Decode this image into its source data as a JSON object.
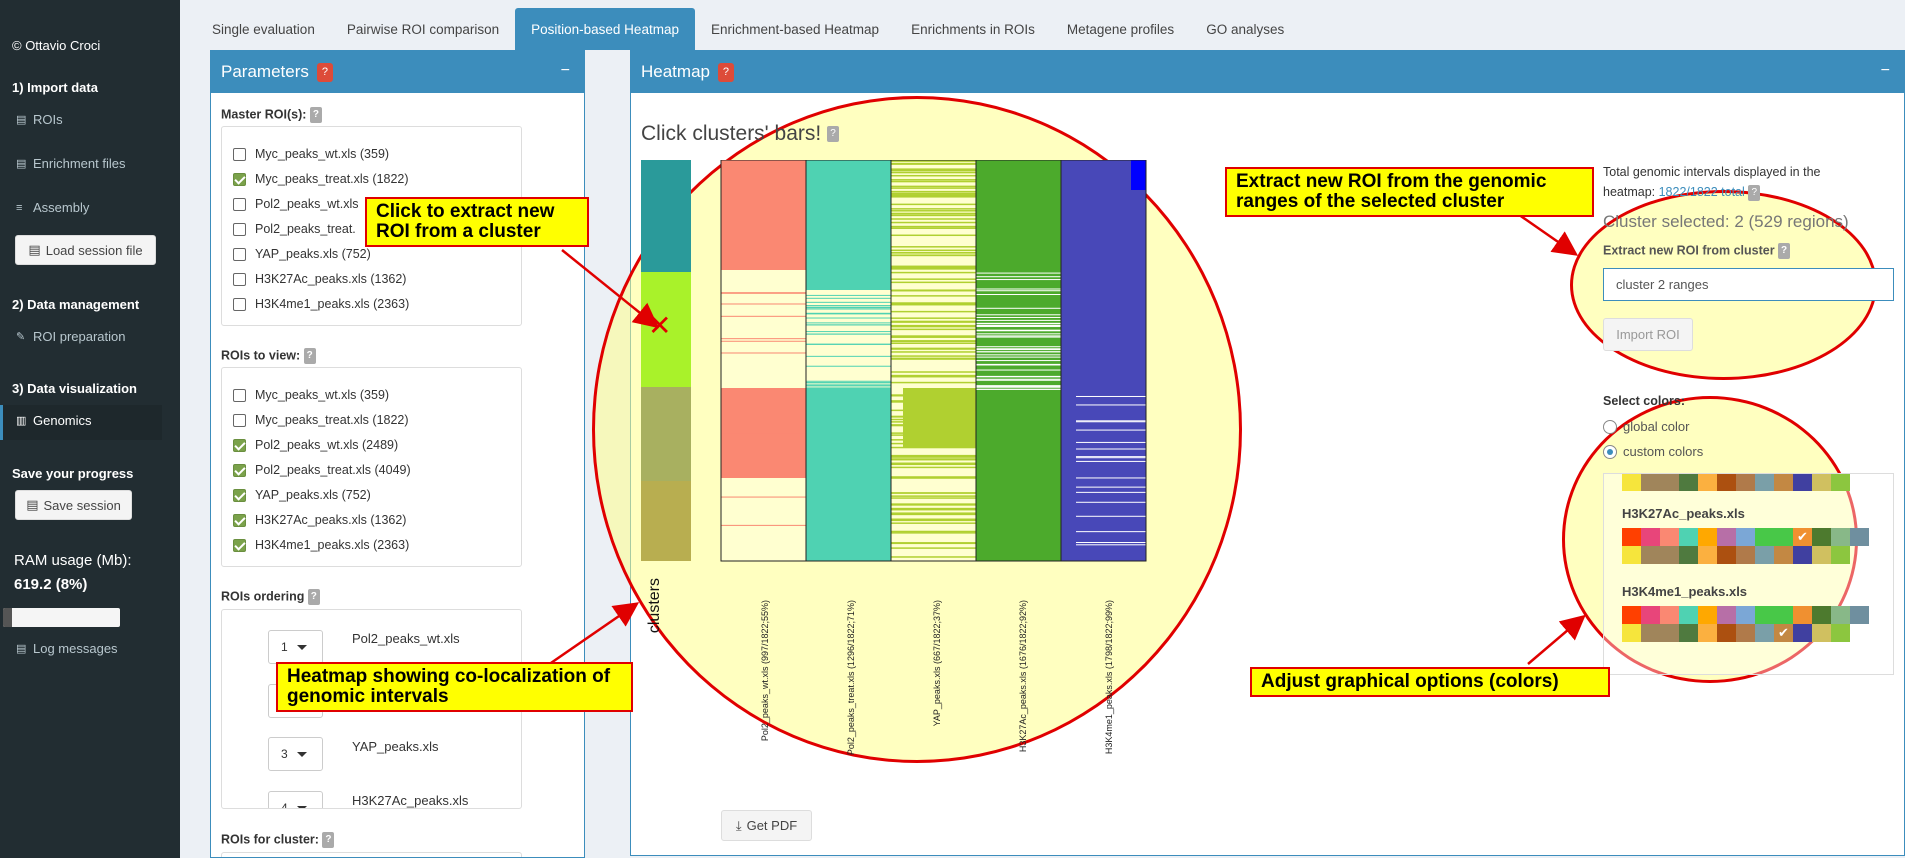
{
  "sidebar": {
    "copyright": "© Ottavio Croci",
    "sec_import": "1) Import data",
    "rois": "ROIs",
    "enrichment": "Enrichment files",
    "assembly": "Assembly",
    "load_session": "Load session file",
    "sec_manage": "2) Data management",
    "roi_prep": "ROI preparation",
    "sec_vis": "3) Data visualization",
    "genomics": "Genomics",
    "save_progress": "Save your progress",
    "save_session": "Save session",
    "ram_label": "RAM usage (Mb):",
    "ram_value": "619.2 (8%)",
    "ram_fraction": 0.08,
    "log": "Log messages"
  },
  "tabs": [
    "Single evaluation",
    "Pairwise ROI comparison",
    "Position-based Heatmap",
    "Enrichment-based Heatmap",
    "Enrichments in ROIs",
    "Metagene profiles",
    "GO analyses"
  ],
  "params": {
    "title": "Parameters",
    "master_label": "Master ROI(s):",
    "master": [
      {
        "label": "Myc_peaks_wt.xls (359)",
        "checked": false
      },
      {
        "label": "Myc_peaks_treat.xls (1822)",
        "checked": true
      },
      {
        "label": "Pol2_peaks_wt.xls",
        "checked": false
      },
      {
        "label": "Pol2_peaks_treat.",
        "checked": false
      },
      {
        "label": "YAP_peaks.xls (752)",
        "checked": false
      },
      {
        "label": "H3K27Ac_peaks.xls (1362)",
        "checked": false
      },
      {
        "label": "H3K4me1_peaks.xls (2363)",
        "checked": false
      }
    ],
    "view_label": "ROIs to view:",
    "view": [
      {
        "label": "Myc_peaks_wt.xls (359)",
        "checked": false
      },
      {
        "label": "Myc_peaks_treat.xls (1822)",
        "checked": false
      },
      {
        "label": "Pol2_peaks_wt.xls (2489)",
        "checked": true
      },
      {
        "label": "Pol2_peaks_treat.xls (4049)",
        "checked": true
      },
      {
        "label": "YAP_peaks.xls (752)",
        "checked": true
      },
      {
        "label": "H3K27Ac_peaks.xls (1362)",
        "checked": true
      },
      {
        "label": "H3K4me1_peaks.xls (2363)",
        "checked": true
      }
    ],
    "ordering_label": "ROIs ordering",
    "ordering": [
      {
        "num": "1",
        "name": "Pol2_peaks_wt.xls"
      },
      {
        "num": "2",
        "name": ""
      },
      {
        "num": "3",
        "name": "YAP_peaks.xls"
      },
      {
        "num": "4",
        "name": "H3K27Ac_peaks.xls"
      }
    ],
    "cluster_label": "ROIs for cluster:"
  },
  "heatmap": {
    "title": "Heatmap",
    "click_title": "Click clusters' bars!",
    "clusters_label": "clusters",
    "col_labels": [
      "Pol2_peaks_wt.xls (997/1822;55%)",
      "Pol2_peaks_treat.xls (1296/1822;71%)",
      "YAP_peaks.xls (667/1822;37%)",
      "H3K27Ac_peaks.xls (1676/1822;92%)",
      "H3K4me1_peaks.xls (1798/1822;99%)"
    ],
    "get_pdf": "Get PDF",
    "total_text1": "Total genomic intervals displayed in the",
    "total_text2": "heatmap: ",
    "total_value": "1822/1822 total",
    "cluster_selected": "Cluster selected: 2 (529 regions)",
    "extract_label": "Extract new ROI from cluster",
    "extract_value": "cluster 2 ranges",
    "import_roi": "Import ROI",
    "select_colors": "Select colors:",
    "radio_global": "global color",
    "radio_custom": "custom colors",
    "palette1_name": "H3K27Ac_peaks.xls",
    "palette2_name": "H3K4me1_peaks.xls",
    "palette_row1": [
      "#ff4000",
      "#e8457a",
      "#fa8872",
      "#4fd2b2",
      "#ffa800",
      "#b76fa7",
      "#7ba7d6",
      "#48c848",
      "#48c848",
      "#f09030",
      "#4d7a2e",
      "#88b888",
      "#6f8f9f"
    ],
    "palette_row2": [
      "#f6e53c",
      "#a0855b",
      "#a0855b",
      "#4f7a3f",
      "#fbb040",
      "#ac5010",
      "#b07a4a",
      "#7a9fa8",
      "#c38843",
      "#4040a0",
      "#d0c060",
      "#8cc63f"
    ]
  },
  "annotations": {
    "a1": "Click to extract new ROI from a cluster",
    "a2": "Heatmap showing co-localization of genomic intervals",
    "a3": "Extract new ROI from the genomic ranges of the selected cluster",
    "a4": "Adjust graphical options (colors)"
  }
}
